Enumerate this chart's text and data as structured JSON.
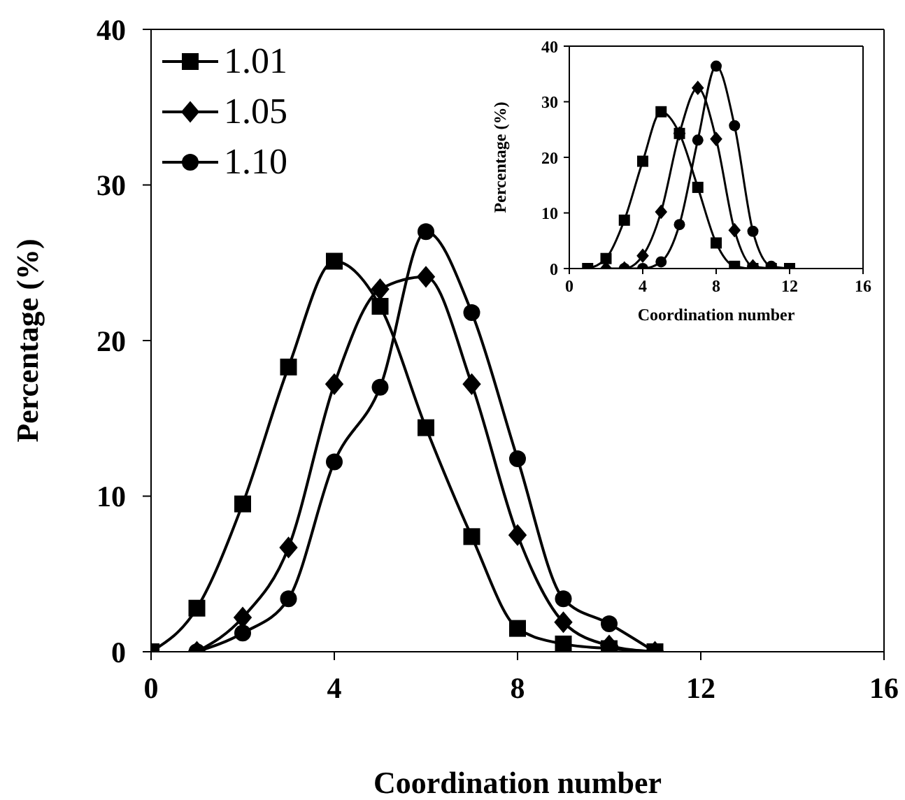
{
  "chart_data": [
    {
      "type": "line",
      "xlabel": "Coordination number",
      "ylabel": "Percentage (%)",
      "xlim": [
        0,
        16
      ],
      "xticks": [
        0,
        4,
        8,
        12,
        16
      ],
      "ylim": [
        0,
        40
      ],
      "yticks": [
        0,
        10,
        20,
        30,
        40
      ],
      "legend": "top left",
      "series": [
        {
          "name": "1.01",
          "color": "#000000",
          "marker": "square",
          "x": [
            0,
            1,
            2,
            3,
            4,
            5,
            6,
            7,
            8,
            9,
            10,
            11
          ],
          "values": [
            0,
            2.8,
            9.5,
            18.3,
            25.1,
            22.2,
            14.4,
            7.4,
            1.5,
            0.5,
            0.2,
            0
          ]
        },
        {
          "name": "1.05",
          "color": "#000000",
          "marker": "diamond",
          "x": [
            1,
            2,
            3,
            4,
            5,
            6,
            7,
            8,
            9,
            10,
            11
          ],
          "values": [
            0,
            2.2,
            6.7,
            17.2,
            23.3,
            24.1,
            17.2,
            7.5,
            1.9,
            0.4,
            0
          ]
        },
        {
          "name": "1.10",
          "color": "#000000",
          "marker": "circle",
          "x": [
            1,
            2,
            3,
            4,
            5,
            6,
            7,
            8,
            9,
            10,
            11
          ],
          "values": [
            0,
            1.2,
            3.4,
            12.2,
            17,
            27,
            21.8,
            12.4,
            3.4,
            1.8,
            0
          ]
        }
      ]
    },
    {
      "type": "line",
      "xlabel": "Coordination number",
      "ylabel": "Percentage (%)",
      "xlim": [
        0,
        16
      ],
      "xticks": [
        0,
        4,
        8,
        12,
        16
      ],
      "ylim": [
        0,
        40
      ],
      "yticks": [
        0,
        10,
        20,
        30,
        40
      ],
      "series": [
        {
          "color": "#000000",
          "marker": "square",
          "x": [
            1,
            2,
            3,
            4,
            5,
            6,
            7,
            8,
            9,
            10,
            11,
            12
          ],
          "values": [
            0,
            1.8,
            8.7,
            19.3,
            28.2,
            24.3,
            14.6,
            4.6,
            0.4,
            0,
            0,
            0
          ]
        },
        {
          "color": "#000000",
          "marker": "diamond",
          "x": [
            2,
            3,
            4,
            5,
            6,
            7,
            8,
            9,
            10,
            11
          ],
          "values": [
            0,
            0,
            2.3,
            10.2,
            24.3,
            32.5,
            23.3,
            6.9,
            0.4,
            0
          ]
        },
        {
          "color": "#000000",
          "marker": "circle",
          "x": [
            3,
            4,
            5,
            6,
            7,
            8,
            9,
            10,
            11,
            12
          ],
          "values": [
            0,
            0,
            1.2,
            7.9,
            23.1,
            36.4,
            25.7,
            6.7,
            0.4,
            0
          ]
        }
      ]
    }
  ]
}
